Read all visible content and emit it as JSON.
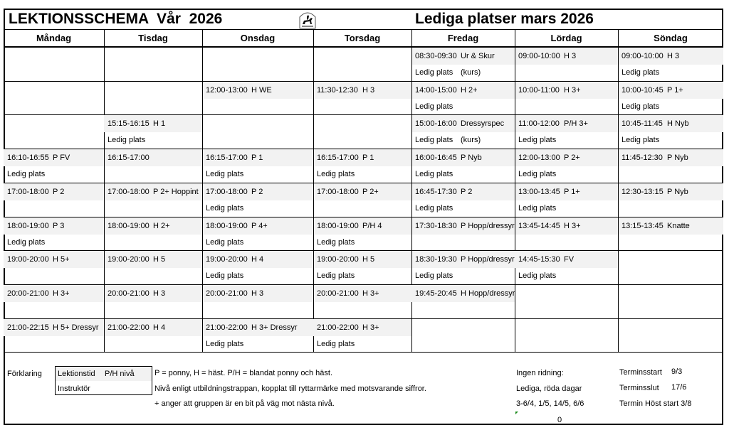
{
  "header": {
    "title": "LEKTIONSSCHEMA  Vår  2026",
    "subtitle": "Lediga platser mars 2026",
    "logo": "horse-rider-logo"
  },
  "days": [
    "Måndag",
    "Tisdag",
    "Onsdag",
    "Torsdag",
    "Fredag",
    "Lördag",
    "Söndag"
  ],
  "rows": [
    [
      null,
      null,
      null,
      null,
      {
        "time": "08:30-09:30",
        "group": "Ur & Skur",
        "note": "Ledig plats",
        "note2": "(kurs)"
      },
      {
        "time": "09:00-10:00",
        "group": "H 3"
      },
      {
        "time": "09:00-10:00",
        "group": "H 3",
        "note": "Ledig plats"
      }
    ],
    [
      null,
      null,
      {
        "time": "12:00-13:00",
        "group": "H WE"
      },
      {
        "time": "11:30-12:30",
        "group": "H 3"
      },
      {
        "time": "14:00-15:00",
        "group": "H 2+",
        "note": "Ledig plats"
      },
      {
        "time": "10:00-11:00",
        "group": "H 3+"
      },
      {
        "time": "10:00-10:45",
        "group": "P 1+",
        "note": "Ledig plats"
      }
    ],
    [
      null,
      {
        "time": "15:15-16:15",
        "group": "H 1",
        "note": "Ledig plats"
      },
      null,
      null,
      {
        "time": "15:00-16:00",
        "group": "Dressyrspec",
        "note": "Ledig plats",
        "note2": "(kurs)"
      },
      {
        "time": "11:00-12:00",
        "group": "P/H 3+",
        "note": "Ledig plats"
      },
      {
        "time": "10:45-11:45",
        "group": "H Nyb",
        "note": "Ledig plats"
      }
    ],
    [
      {
        "time": "16:10-16:55",
        "group": "P FV",
        "note": "Ledig plats"
      },
      {
        "time": "16:15-17:00",
        "group": ""
      },
      {
        "time": "16:15-17:00",
        "group": "P 1",
        "note": "Ledig plats"
      },
      {
        "time": "16:15-17:00",
        "group": "P 1",
        "note": "Ledig plats"
      },
      {
        "time": "16:00-16:45",
        "group": "P Nyb",
        "note": "Ledig plats"
      },
      {
        "time": "12:00-13:00",
        "group": "P 2+",
        "note": "Ledig plats"
      },
      {
        "time": "11:45-12:30",
        "group": "P Nyb"
      }
    ],
    [
      {
        "time": "17:00-18:00",
        "group": "P 2"
      },
      {
        "time": "17:00-18:00",
        "group": "P 2+ Hoppint"
      },
      {
        "time": "17:00-18:00",
        "group": "P 2",
        "note": "Ledig plats"
      },
      {
        "time": "17:00-18:00",
        "group": "P 2+"
      },
      {
        "time": "16:45-17:30",
        "group": "P 2",
        "note": "Ledig plats"
      },
      {
        "time": "13:00-13:45",
        "group": "P 1+",
        "note": "Ledig plats"
      },
      {
        "time": "12:30-13:15",
        "group": "P Nyb"
      }
    ],
    [
      {
        "time": "18:00-19:00",
        "group": "P 3",
        "note": "Ledig plats"
      },
      {
        "time": "18:00-19:00",
        "group": "H 2+"
      },
      {
        "time": "18:00-19:00",
        "group": "P 4+",
        "note": "Ledig plats"
      },
      {
        "time": "18:00-19:00",
        "group": "P/H 4",
        "note": "Ledig plats"
      },
      {
        "time": "17:30-18:30",
        "group": "P Hopp/dressyr"
      },
      {
        "time": "13:45-14:45",
        "group": "H 3+"
      },
      {
        "time": "13:15-13:45",
        "group": "Knatte"
      }
    ],
    [
      {
        "time": "19:00-20:00",
        "group": "H 5+"
      },
      {
        "time": "19:00-20:00",
        "group": "H 5"
      },
      {
        "time": "19:00-20:00",
        "group": "H 4",
        "note": "Ledig plats"
      },
      {
        "time": "19:00-20:00",
        "group": "H 5",
        "note": "Ledig plats"
      },
      {
        "time": "18:30-19:30",
        "group": "P Hopp/dressyr",
        "note": "Ledig plats"
      },
      {
        "time": "14:45-15:30",
        "group": "FV",
        "note": "Ledig plats"
      },
      null
    ],
    [
      {
        "time": "20:00-21:00",
        "group": "H 3+"
      },
      {
        "time": "20:00-21:00",
        "group": "H 3"
      },
      {
        "time": "20:00-21:00",
        "group": "H 3"
      },
      {
        "time": "20:00-21:00",
        "group": "H 3+"
      },
      {
        "time": "19:45-20:45",
        "group": "H Hopp/dressyr"
      },
      null,
      null
    ],
    [
      {
        "time": "21:00-22:15",
        "group": "H 5+ Dressyr"
      },
      {
        "time": "21:00-22:00",
        "group": "H 4"
      },
      {
        "time": "21:00-22:00",
        "group": "H 3+ Dressyr",
        "note": "Ledig plats"
      },
      {
        "time": "21:00-22:00",
        "group": "H 3+",
        "note": "Ledig plats"
      },
      null,
      null,
      null
    ]
  ],
  "legend": {
    "label": "Förklaring",
    "box_line1_a": "Lektionstid",
    "box_line1_b": "P/H  nivå",
    "box_line2": "Instruktör",
    "line1": "P = ponny, H = häst. P/H = blandat ponny och häst.",
    "line2": "Nivå enligt utbildningstrappan, kopplat till ryttarmärke med motsvarande siffror.",
    "line3": "+ anger att gruppen är en bit på väg mot nästa nivå."
  },
  "no_riding": {
    "title": "Ingen ridning:",
    "subtitle": "Lediga, röda dagar",
    "dates": "3-6/4, 1/5, 14/5, 6/6",
    "value": "0"
  },
  "term": {
    "start_label": "Terminsstart",
    "start": "9/3",
    "end_label": "Terminsslut",
    "end": "17/6",
    "autumn": "Termin Höst start 3/8"
  },
  "colors": {
    "cell_fill": "#f2f2f2",
    "border": "#000000",
    "comment_marker": "#1a8a1a"
  }
}
